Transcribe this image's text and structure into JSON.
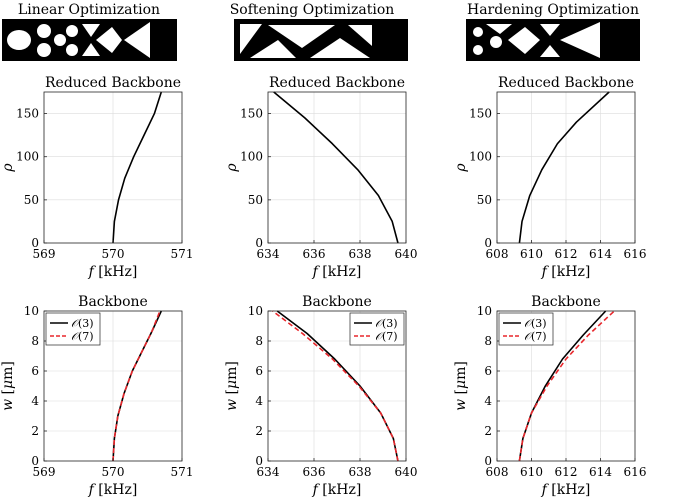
{
  "figure": {
    "optimization_titles": [
      "Linear Optimization",
      "Softening Optimization",
      "Hardening Optimization"
    ]
  },
  "chart_data": [
    {
      "id": "rb-linear",
      "type": "line",
      "title": "Reduced Backbone",
      "xlabel": "f [kHz]",
      "ylabel": "ρ",
      "xlim": [
        569,
        571
      ],
      "ylim": [
        0,
        175
      ],
      "xticks": [
        569,
        570,
        571
      ],
      "yticks": [
        0,
        50,
        100,
        150
      ],
      "grid": true,
      "series": [
        {
          "style": "solid",
          "color": "#000000",
          "x": [
            570.0,
            570.02,
            570.08,
            570.17,
            570.3,
            570.45,
            570.6,
            570.7
          ],
          "y": [
            0,
            25,
            50,
            75,
            100,
            125,
            150,
            175
          ]
        }
      ]
    },
    {
      "id": "rb-softening",
      "type": "line",
      "title": "Reduced Backbone",
      "xlabel": "f [kHz]",
      "ylabel": "ρ",
      "xlim": [
        634,
        640
      ],
      "ylim": [
        0,
        175
      ],
      "xticks": [
        634,
        636,
        638,
        640
      ],
      "yticks": [
        0,
        50,
        100,
        150
      ],
      "grid": true,
      "series": [
        {
          "style": "solid",
          "color": "#000000",
          "x": [
            639.65,
            639.4,
            638.8,
            637.9,
            636.8,
            635.6,
            634.25
          ],
          "y": [
            0,
            25,
            55,
            85,
            115,
            145,
            175
          ]
        }
      ]
    },
    {
      "id": "rb-hardening",
      "type": "line",
      "title": "Reduced Backbone",
      "xlabel": "f [kHz]",
      "ylabel": "ρ",
      "xlim": [
        608,
        616
      ],
      "ylim": [
        0,
        175
      ],
      "xticks": [
        608,
        610,
        612,
        614,
        616
      ],
      "yticks": [
        0,
        50,
        100,
        150
      ],
      "grid": true,
      "series": [
        {
          "style": "solid",
          "color": "#000000",
          "x": [
            609.3,
            609.45,
            609.9,
            610.6,
            611.5,
            612.6,
            614.5
          ],
          "y": [
            0,
            25,
            55,
            85,
            115,
            140,
            175
          ]
        }
      ]
    },
    {
      "id": "bb-linear",
      "type": "line",
      "title": "Backbone",
      "xlabel": "f [kHz]",
      "ylabel": "w [μm]",
      "xlim": [
        569,
        571
      ],
      "ylim": [
        0,
        10
      ],
      "xticks": [
        569,
        570,
        571
      ],
      "yticks": [
        0,
        2,
        4,
        6,
        8,
        10
      ],
      "grid": true,
      "legend": "top-left",
      "series": [
        {
          "name": "O(3)",
          "style": "solid",
          "color": "#000000",
          "x": [
            570.0,
            570.02,
            570.07,
            570.16,
            570.28,
            570.42,
            570.56,
            570.7
          ],
          "y": [
            0,
            1.5,
            3,
            4.5,
            6,
            7.3,
            8.6,
            10
          ]
        },
        {
          "name": "O(7)",
          "style": "dashed",
          "color": "#e8262b",
          "x": [
            570.0,
            570.02,
            570.07,
            570.16,
            570.28,
            570.42,
            570.56,
            570.68
          ],
          "y": [
            0,
            1.5,
            3,
            4.5,
            6,
            7.3,
            8.6,
            10
          ]
        }
      ]
    },
    {
      "id": "bb-softening",
      "type": "line",
      "title": "Backbone",
      "xlabel": "f [kHz]",
      "ylabel": "w [μm]",
      "xlim": [
        634,
        640
      ],
      "ylim": [
        0,
        10
      ],
      "xticks": [
        634,
        636,
        638,
        640
      ],
      "yticks": [
        0,
        2,
        4,
        6,
        8,
        10
      ],
      "grid": true,
      "legend": "top-right",
      "series": [
        {
          "name": "O(3)",
          "style": "solid",
          "color": "#000000",
          "x": [
            639.65,
            639.45,
            638.9,
            638.0,
            636.9,
            635.7,
            634.4
          ],
          "y": [
            0,
            1.5,
            3.2,
            5.0,
            6.8,
            8.5,
            10
          ]
        },
        {
          "name": "O(7)",
          "style": "dashed",
          "color": "#e8262b",
          "x": [
            639.65,
            639.45,
            638.9,
            637.95,
            636.8,
            635.5,
            634.2
          ],
          "y": [
            0,
            1.5,
            3.2,
            5.0,
            6.8,
            8.5,
            10
          ]
        }
      ]
    },
    {
      "id": "bb-hardening",
      "type": "line",
      "title": "Backbone",
      "xlabel": "f [kHz]",
      "ylabel": "w [μm]",
      "xlim": [
        608,
        616
      ],
      "ylim": [
        0,
        10
      ],
      "xticks": [
        608,
        610,
        612,
        614,
        616
      ],
      "yticks": [
        0,
        2,
        4,
        6,
        8,
        10
      ],
      "grid": true,
      "legend": "top-left",
      "series": [
        {
          "name": "O(3)",
          "style": "solid",
          "color": "#000000",
          "x": [
            609.3,
            609.5,
            610.0,
            610.8,
            611.8,
            613.0,
            614.3
          ],
          "y": [
            0,
            1.5,
            3.2,
            5.0,
            6.8,
            8.4,
            10
          ]
        },
        {
          "name": "O(7)",
          "style": "dashed",
          "color": "#e8262b",
          "x": [
            609.3,
            609.5,
            610.0,
            610.9,
            612.0,
            613.3,
            614.8
          ],
          "y": [
            0,
            1.5,
            3.2,
            5.0,
            6.8,
            8.4,
            10
          ]
        }
      ]
    }
  ]
}
